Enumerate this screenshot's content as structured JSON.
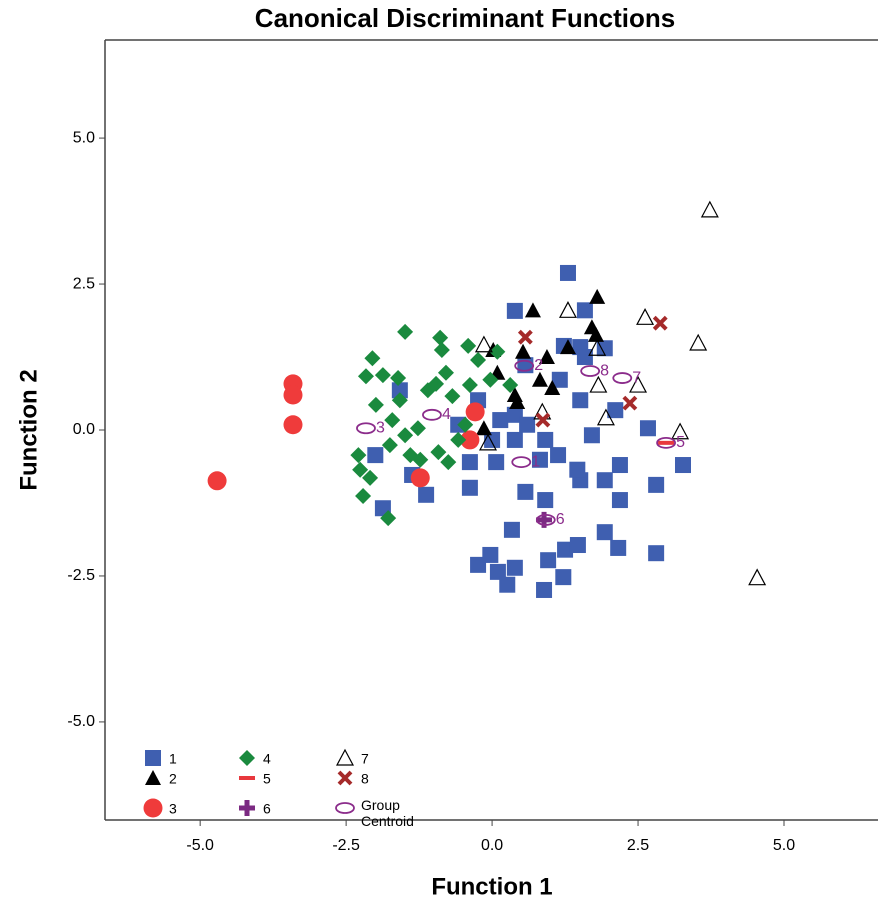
{
  "chart_data": {
    "type": "scatter",
    "title": "Canonical Discriminant Functions",
    "x_label": "Function 1",
    "y_label": "Function 2",
    "xlim": [
      -6.63,
      6.61
    ],
    "ylim": [
      -6.68,
      6.68
    ],
    "xticks": [
      {
        "value": -5,
        "label": "-5.0"
      },
      -2.5,
      {
        "value": 0,
        "label": "0.0"
      },
      2.5,
      {
        "value": 5,
        "label": "5.0"
      }
    ],
    "yticks": [
      {
        "value": -5,
        "label": "-5.0"
      },
      -2.5,
      {
        "value": 0,
        "label": "0.0"
      },
      2.5,
      {
        "value": 5,
        "label": "5.0"
      }
    ],
    "series": [
      {
        "name": "1",
        "color": "#3f5fb0",
        "marker": "square",
        "x": [
          1.3,
          0.39,
          1.59,
          1.23,
          1.51,
          1.93,
          1.59,
          -1.58,
          0.57,
          1.16,
          1.51,
          2.11,
          2.67,
          1.71,
          0.14,
          0.39,
          -0.38,
          0.07,
          -1.13,
          -1.87,
          -2.0,
          -1.37,
          -0.38,
          0.57,
          1.51,
          1.93,
          2.19,
          2.81,
          3.27,
          2.81,
          1.93,
          2.16,
          0.34,
          1.25,
          1.47,
          0.96,
          1.22,
          0.89,
          -0.24,
          -0.03,
          0.1,
          0.26,
          0.39,
          0.91,
          -0.58,
          -0.24,
          0.82,
          1.13,
          1.46,
          2.19,
          0.39,
          0.0,
          0.91,
          0.6
        ],
        "y": [
          2.69,
          2.04,
          2.05,
          1.44,
          1.42,
          1.4,
          1.25,
          0.68,
          1.11,
          0.86,
          0.51,
          0.34,
          0.03,
          -0.09,
          0.17,
          -0.17,
          -0.55,
          -0.55,
          -1.11,
          -1.34,
          -0.43,
          -0.77,
          -0.99,
          -1.06,
          -0.86,
          -0.86,
          -1.2,
          -0.94,
          -0.6,
          -2.11,
          -1.75,
          -2.02,
          -1.71,
          -2.05,
          -1.97,
          -2.23,
          -2.52,
          -2.74,
          -2.31,
          -2.14,
          -2.43,
          -2.65,
          -2.36,
          -1.2,
          0.09,
          0.51,
          -0.51,
          -0.43,
          -0.68,
          -0.6,
          0.26,
          -0.17,
          -0.17,
          0.09
        ]
      },
      {
        "name": "2",
        "color": "#000000",
        "marker": "triangle",
        "x": [
          0.7,
          1.8,
          1.71,
          1.78,
          1.3,
          0.02,
          0.53,
          0.94,
          1.03,
          0.09,
          0.43,
          0.39,
          -0.14,
          0.82
        ],
        "y": [
          2.05,
          2.28,
          1.76,
          1.63,
          1.42,
          1.37,
          1.34,
          1.25,
          0.72,
          0.98,
          0.48,
          0.6,
          0.03,
          0.86
        ]
      },
      {
        "name": "3",
        "color": "#ef3b3b",
        "marker": "circle",
        "x": [
          -3.41,
          -3.41,
          -3.41,
          -4.71,
          -1.23,
          -0.29,
          -0.38
        ],
        "y": [
          0.79,
          0.6,
          0.09,
          -0.87,
          -0.82,
          0.31,
          -0.17
        ]
      },
      {
        "name": "4",
        "color": "#1a8a3e",
        "marker": "diamond",
        "x": [
          -1.49,
          -2.05,
          -0.89,
          -0.86,
          -0.41,
          0.09,
          -2.16,
          -1.87,
          -1.61,
          -0.79,
          -0.24,
          -1.99,
          -1.1,
          -0.96,
          -0.68,
          -0.38,
          -0.03,
          -1.71,
          -1.49,
          -1.27,
          -1.75,
          -1.4,
          -2.29,
          -2.26,
          -2.09,
          -2.21,
          -1.78,
          -1.23,
          -0.92,
          -0.75,
          -0.58,
          -0.46,
          0.31,
          -1.58
        ],
        "y": [
          1.68,
          1.23,
          1.58,
          1.37,
          1.44,
          1.34,
          0.92,
          0.94,
          0.89,
          0.98,
          1.2,
          0.43,
          0.68,
          0.79,
          0.58,
          0.77,
          0.86,
          0.17,
          -0.09,
          0.03,
          -0.26,
          -0.43,
          -0.43,
          -0.68,
          -0.82,
          -1.13,
          -1.51,
          -0.51,
          -0.38,
          -0.55,
          -0.17,
          0.09,
          0.77,
          0.51
        ]
      },
      {
        "name": "5",
        "color": "#e8383d",
        "marker": "dash",
        "x": [
          2.98
        ],
        "y": [
          -0.22
        ]
      },
      {
        "name": "6",
        "color": "#7b2a82",
        "marker": "plus",
        "x": [
          0.89
        ],
        "y": [
          -1.54
        ]
      },
      {
        "name": "7",
        "color": "#000000",
        "marker": "triangle-open",
        "x": [
          3.73,
          3.53,
          4.54,
          1.3,
          2.62,
          -0.14,
          1.82,
          1.95,
          3.22,
          2.5,
          0.86,
          -0.07,
          1.8
        ],
        "y": [
          3.77,
          1.49,
          -2.53,
          2.05,
          1.93,
          1.46,
          0.77,
          0.21,
          -0.03,
          0.77,
          0.31,
          -0.22,
          1.4
        ]
      },
      {
        "name": "8",
        "color": "#a52a2a",
        "marker": "x",
        "x": [
          0.57,
          2.88,
          2.36,
          0.87
        ],
        "y": [
          1.59,
          1.83,
          0.46,
          0.17
        ]
      },
      {
        "name": "Group Centroid",
        "color": "#8b2c8b",
        "marker": "ellipse-open",
        "x": [
          0.5,
          0.55,
          -2.16,
          -1.03,
          2.98,
          0.92,
          2.23,
          1.68
        ],
        "y": [
          -0.55,
          1.1,
          0.03,
          0.26,
          -0.22,
          -1.54,
          0.89,
          1.01
        ],
        "labels": [
          "1",
          "2",
          "3",
          "4",
          "5",
          "6",
          "7",
          "8"
        ]
      }
    ]
  }
}
